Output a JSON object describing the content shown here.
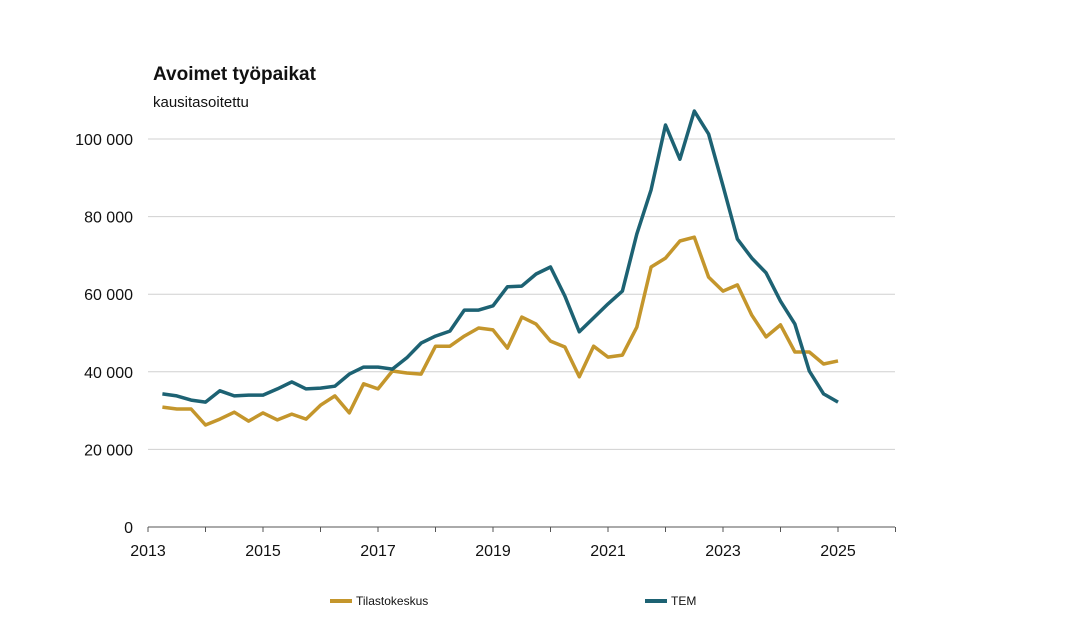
{
  "chart_data": {
    "type": "line",
    "title": "Avoimet työpaikat",
    "subtitle": "kausitasoitettu",
    "xlabel": "",
    "ylabel": "",
    "xlim": [
      2013,
      2026
    ],
    "ylim": [
      0,
      100000
    ],
    "yticks": [
      0,
      20000,
      40000,
      60000,
      80000,
      100000
    ],
    "ytick_labels": [
      "0",
      "20 000",
      "40 000",
      "60 000",
      "80 000",
      "100 000"
    ],
    "xticks": [
      2013,
      2015,
      2017,
      2019,
      2021,
      2023,
      2025
    ],
    "xtick_labels": [
      "2013",
      "2015",
      "2017",
      "2019",
      "2021",
      "2023",
      "2025"
    ],
    "grid": "horizontal",
    "legend_position": "bottom",
    "x_start": 2013.25,
    "x_step": 0.25,
    "series": [
      {
        "name": "Tilastokeskus",
        "color": "#c4962c",
        "values": [
          30900,
          30400,
          30400,
          26300,
          27800,
          29600,
          27300,
          29400,
          27600,
          29100,
          27800,
          31400,
          33800,
          29400,
          36900,
          35600,
          40200,
          39700,
          39400,
          46600,
          46600,
          49200,
          51300,
          50800,
          46100,
          54100,
          52300,
          47900,
          46400,
          38700,
          46600,
          43800,
          44300,
          51500,
          67000,
          69300,
          73700,
          74700,
          64400,
          60800,
          62400,
          54600,
          49000,
          52100,
          45100,
          45100,
          42000,
          42800
        ]
      },
      {
        "name": "TEM",
        "color": "#1d6273",
        "values": [
          34300,
          33800,
          32700,
          32200,
          35100,
          33800,
          34000,
          34000,
          35600,
          37400,
          35600,
          35800,
          36300,
          39400,
          41200,
          41200,
          40700,
          43600,
          47400,
          49200,
          50500,
          55900,
          55900,
          57000,
          61900,
          62100,
          65200,
          67000,
          59500,
          50300,
          53900,
          57500,
          60800,
          75500,
          86900,
          103600,
          94800,
          107200,
          101300,
          87900,
          74200,
          69300,
          65500,
          58200,
          52300,
          40200,
          34300,
          32200
        ]
      }
    ]
  }
}
